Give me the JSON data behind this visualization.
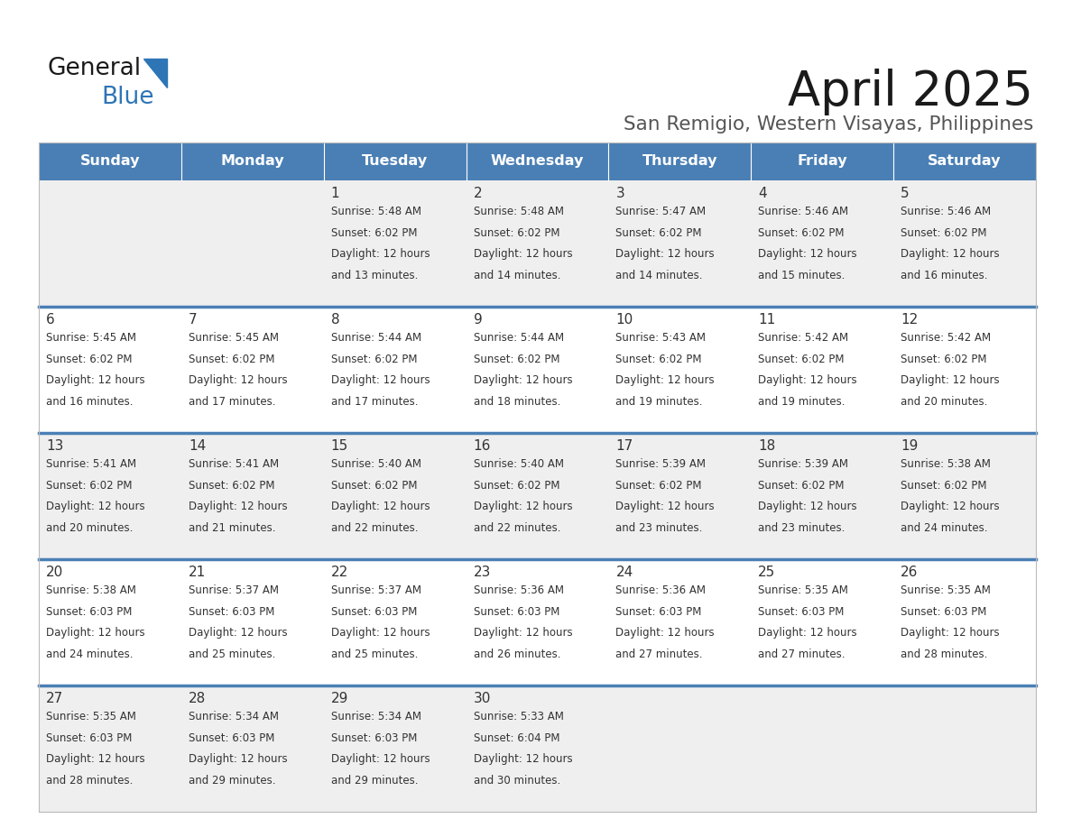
{
  "title": "April 2025",
  "subtitle": "San Remigio, Western Visayas, Philippines",
  "days_of_week": [
    "Sunday",
    "Monday",
    "Tuesday",
    "Wednesday",
    "Thursday",
    "Friday",
    "Saturday"
  ],
  "header_bg": "#4A7FB5",
  "header_text_color": "#FFFFFF",
  "cell_bg_odd": "#EFEFEF",
  "cell_bg_even": "#FFFFFF",
  "row_separator_color": "#4A7FB5",
  "text_color": "#333333",
  "title_color": "#1a1a1a",
  "subtitle_color": "#555555",
  "logo_general_color": "#1a1a1a",
  "logo_blue_color": "#2E75B6",
  "calendar": [
    [
      null,
      null,
      {
        "day": 1,
        "sunrise": "5:48 AM",
        "sunset": "6:02 PM",
        "daylight_hrs": 12,
        "daylight_min": 13
      },
      {
        "day": 2,
        "sunrise": "5:48 AM",
        "sunset": "6:02 PM",
        "daylight_hrs": 12,
        "daylight_min": 14
      },
      {
        "day": 3,
        "sunrise": "5:47 AM",
        "sunset": "6:02 PM",
        "daylight_hrs": 12,
        "daylight_min": 14
      },
      {
        "day": 4,
        "sunrise": "5:46 AM",
        "sunset": "6:02 PM",
        "daylight_hrs": 12,
        "daylight_min": 15
      },
      {
        "day": 5,
        "sunrise": "5:46 AM",
        "sunset": "6:02 PM",
        "daylight_hrs": 12,
        "daylight_min": 16
      }
    ],
    [
      {
        "day": 6,
        "sunrise": "5:45 AM",
        "sunset": "6:02 PM",
        "daylight_hrs": 12,
        "daylight_min": 16
      },
      {
        "day": 7,
        "sunrise": "5:45 AM",
        "sunset": "6:02 PM",
        "daylight_hrs": 12,
        "daylight_min": 17
      },
      {
        "day": 8,
        "sunrise": "5:44 AM",
        "sunset": "6:02 PM",
        "daylight_hrs": 12,
        "daylight_min": 17
      },
      {
        "day": 9,
        "sunrise": "5:44 AM",
        "sunset": "6:02 PM",
        "daylight_hrs": 12,
        "daylight_min": 18
      },
      {
        "day": 10,
        "sunrise": "5:43 AM",
        "sunset": "6:02 PM",
        "daylight_hrs": 12,
        "daylight_min": 19
      },
      {
        "day": 11,
        "sunrise": "5:42 AM",
        "sunset": "6:02 PM",
        "daylight_hrs": 12,
        "daylight_min": 19
      },
      {
        "day": 12,
        "sunrise": "5:42 AM",
        "sunset": "6:02 PM",
        "daylight_hrs": 12,
        "daylight_min": 20
      }
    ],
    [
      {
        "day": 13,
        "sunrise": "5:41 AM",
        "sunset": "6:02 PM",
        "daylight_hrs": 12,
        "daylight_min": 20
      },
      {
        "day": 14,
        "sunrise": "5:41 AM",
        "sunset": "6:02 PM",
        "daylight_hrs": 12,
        "daylight_min": 21
      },
      {
        "day": 15,
        "sunrise": "5:40 AM",
        "sunset": "6:02 PM",
        "daylight_hrs": 12,
        "daylight_min": 22
      },
      {
        "day": 16,
        "sunrise": "5:40 AM",
        "sunset": "6:02 PM",
        "daylight_hrs": 12,
        "daylight_min": 22
      },
      {
        "day": 17,
        "sunrise": "5:39 AM",
        "sunset": "6:02 PM",
        "daylight_hrs": 12,
        "daylight_min": 23
      },
      {
        "day": 18,
        "sunrise": "5:39 AM",
        "sunset": "6:02 PM",
        "daylight_hrs": 12,
        "daylight_min": 23
      },
      {
        "day": 19,
        "sunrise": "5:38 AM",
        "sunset": "6:02 PM",
        "daylight_hrs": 12,
        "daylight_min": 24
      }
    ],
    [
      {
        "day": 20,
        "sunrise": "5:38 AM",
        "sunset": "6:03 PM",
        "daylight_hrs": 12,
        "daylight_min": 24
      },
      {
        "day": 21,
        "sunrise": "5:37 AM",
        "sunset": "6:03 PM",
        "daylight_hrs": 12,
        "daylight_min": 25
      },
      {
        "day": 22,
        "sunrise": "5:37 AM",
        "sunset": "6:03 PM",
        "daylight_hrs": 12,
        "daylight_min": 25
      },
      {
        "day": 23,
        "sunrise": "5:36 AM",
        "sunset": "6:03 PM",
        "daylight_hrs": 12,
        "daylight_min": 26
      },
      {
        "day": 24,
        "sunrise": "5:36 AM",
        "sunset": "6:03 PM",
        "daylight_hrs": 12,
        "daylight_min": 27
      },
      {
        "day": 25,
        "sunrise": "5:35 AM",
        "sunset": "6:03 PM",
        "daylight_hrs": 12,
        "daylight_min": 27
      },
      {
        "day": 26,
        "sunrise": "5:35 AM",
        "sunset": "6:03 PM",
        "daylight_hrs": 12,
        "daylight_min": 28
      }
    ],
    [
      {
        "day": 27,
        "sunrise": "5:35 AM",
        "sunset": "6:03 PM",
        "daylight_hrs": 12,
        "daylight_min": 28
      },
      {
        "day": 28,
        "sunrise": "5:34 AM",
        "sunset": "6:03 PM",
        "daylight_hrs": 12,
        "daylight_min": 29
      },
      {
        "day": 29,
        "sunrise": "5:34 AM",
        "sunset": "6:03 PM",
        "daylight_hrs": 12,
        "daylight_min": 29
      },
      {
        "day": 30,
        "sunrise": "5:33 AM",
        "sunset": "6:04 PM",
        "daylight_hrs": 12,
        "daylight_min": 30
      },
      null,
      null,
      null
    ]
  ]
}
